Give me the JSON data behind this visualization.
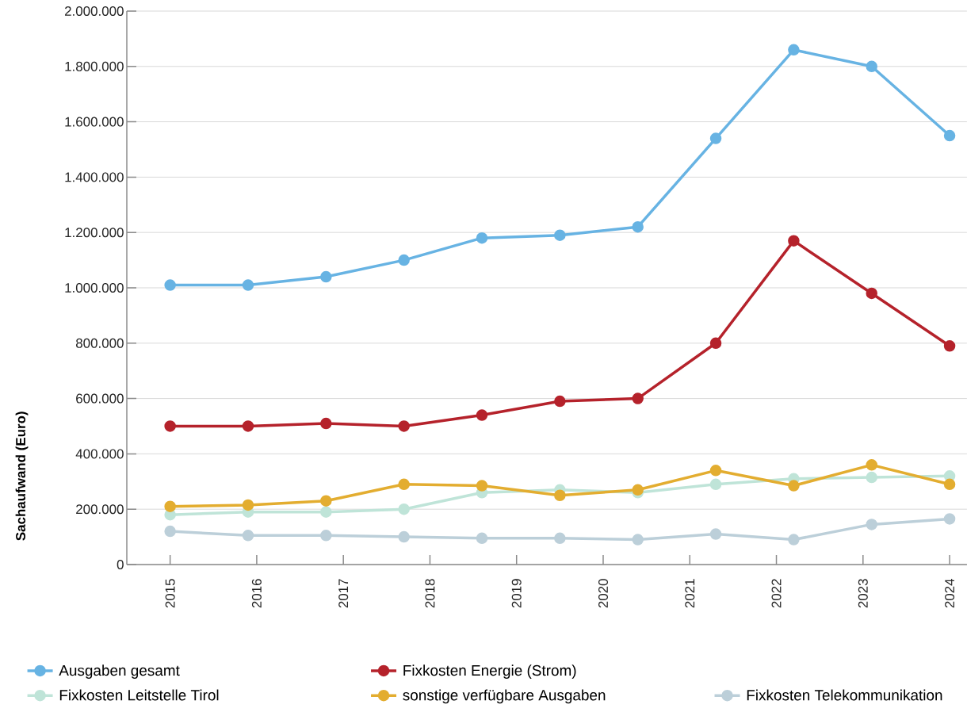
{
  "chart_data": {
    "type": "line",
    "ylabel": "Sachaufwand (Euro)",
    "x": [
      2015,
      2015.9,
      2016.8,
      2017.7,
      2018.6,
      2019.5,
      2020.4,
      2021.3,
      2022.2,
      2023.1,
      2024
    ],
    "xlim": [
      2014.5,
      2024.2
    ],
    "xticks": [
      2015,
      2016,
      2017,
      2018,
      2019,
      2020,
      2021,
      2022,
      2023,
      2024
    ],
    "ylim": [
      0,
      2000000
    ],
    "yticks": [
      0,
      {
        "value": 200000,
        "label": "200.000"
      },
      {
        "value": 400000,
        "label": "400.000"
      },
      {
        "value": 600000,
        "label": "600.000"
      },
      {
        "value": 800000,
        "label": "800.000"
      },
      {
        "value": 1000000,
        "label": "1.000.000"
      },
      {
        "value": 1200000,
        "label": "1.200.000"
      },
      {
        "value": 1400000,
        "label": "1.400.000"
      },
      {
        "value": 1600000,
        "label": "1.600.000"
      },
      {
        "value": 1800000,
        "label": "1.800.000"
      },
      {
        "value": 2000000,
        "label": "2.000.000"
      }
    ],
    "grid": "y",
    "legend": "bottom",
    "marker": "circle",
    "line_style": "solid",
    "series": [
      {
        "name": "Ausgaben gesamt",
        "color": "#67b3e3",
        "values": [
          1010000,
          1010000,
          1040000,
          1100000,
          1180000,
          1190000,
          1220000,
          1540000,
          1860000,
          1800000,
          1550000
        ]
      },
      {
        "name": "Fixkosten Energie (Strom)",
        "color": "#b5222b",
        "values": [
          500000,
          500000,
          510000,
          500000,
          540000,
          590000,
          600000,
          800000,
          1170000,
          980000,
          790000
        ]
      },
      {
        "name": "Fixkosten Leitstelle Tirol",
        "color": "#bfe4d8",
        "values": [
          180000,
          190000,
          190000,
          200000,
          260000,
          270000,
          260000,
          290000,
          310000,
          315000,
          320000
        ]
      },
      {
        "name": "sonstige verfügbare Ausgaben",
        "color": "#e3ad30",
        "values": [
          210000,
          215000,
          230000,
          290000,
          285000,
          250000,
          270000,
          340000,
          285000,
          360000,
          290000
        ]
      },
      {
        "name": "Fixkosten Telekommunikation",
        "color": "#bccfd9",
        "values": [
          120000,
          105000,
          105000,
          100000,
          95000,
          95000,
          90000,
          110000,
          90000,
          145000,
          165000
        ]
      }
    ]
  }
}
